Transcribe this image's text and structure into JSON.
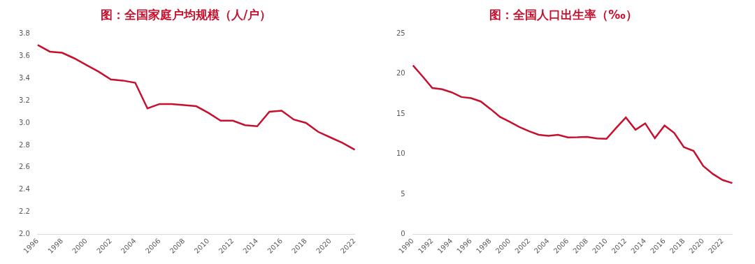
{
  "chart_data": [
    {
      "type": "line",
      "title": "图：全国家庭户均规模（人/户）",
      "categories": [
        "1996",
        null,
        "1998",
        null,
        "2000",
        null,
        "2002",
        null,
        "2004",
        null,
        "2006",
        null,
        "2008",
        null,
        "2010",
        null,
        "2012",
        null,
        "2014",
        null,
        "2016",
        null,
        "2018",
        null,
        "2020",
        null,
        "2022"
      ],
      "values": [
        3.7,
        3.64,
        3.63,
        3.58,
        3.52,
        3.46,
        3.39,
        3.38,
        3.36,
        3.13,
        3.17,
        3.17,
        3.16,
        3.15,
        3.09,
        3.02,
        3.02,
        2.98,
        2.97,
        3.1,
        3.11,
        3.03,
        3.0,
        2.92,
        2.87,
        2.82,
        2.76
      ],
      "color": "#c8102e",
      "ylim": [
        2.0,
        3.8
      ],
      "yticks": [
        {
          "value": 2.0,
          "label": "2.0"
        },
        2.2,
        2.4,
        2.6,
        2.8,
        {
          "value": 3.0,
          "label": "3.0"
        },
        3.2,
        3.4,
        3.6,
        3.8
      ],
      "grid": false
    },
    {
      "type": "line",
      "title": "图：全国人口出生率（‰）",
      "categories": [
        "1990",
        null,
        "1992",
        null,
        "1994",
        null,
        "1996",
        null,
        "1998",
        null,
        "2000",
        null,
        "2002",
        null,
        "2004",
        null,
        "2006",
        null,
        "2008",
        null,
        "2010",
        null,
        "2012",
        null,
        "2014",
        null,
        "2016",
        null,
        "2018",
        null,
        "2020",
        null,
        "2022",
        null
      ],
      "values": [
        21.06,
        19.68,
        18.24,
        18.09,
        17.7,
        17.12,
        16.98,
        16.57,
        15.64,
        14.64,
        14.03,
        13.38,
        12.86,
        12.41,
        12.29,
        12.4,
        12.09,
        12.1,
        12.14,
        11.95,
        11.9,
        13.27,
        14.57,
        13.03,
        13.83,
        11.99,
        13.57,
        12.64,
        10.86,
        10.41,
        8.52,
        7.52,
        6.77,
        6.39
      ],
      "color": "#c8102e",
      "ylim": [
        0,
        25
      ],
      "yticks": [
        0,
        5,
        10,
        15,
        20,
        25
      ],
      "grid": false
    }
  ]
}
